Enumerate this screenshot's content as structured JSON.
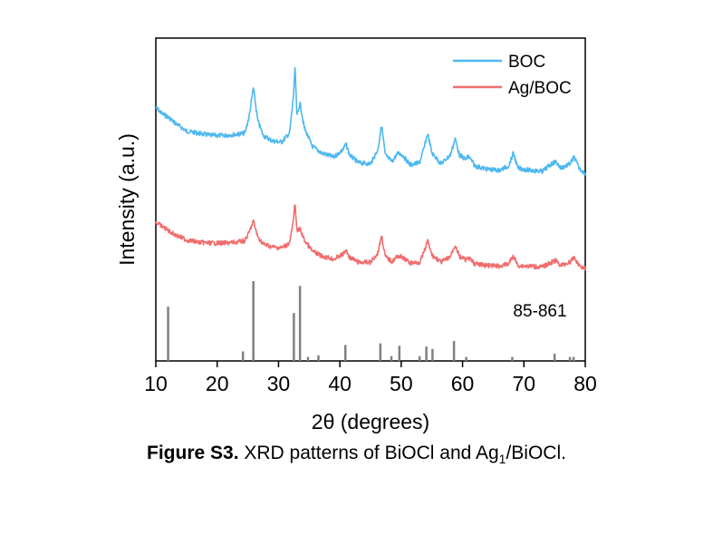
{
  "chart_data": {
    "type": "line",
    "title": "",
    "xlabel": "2θ (degrees)",
    "ylabel": "Intensity (a.u.)",
    "xlim": [
      10,
      80
    ],
    "xticks": [
      10,
      20,
      30,
      40,
      50,
      60,
      70,
      80
    ],
    "yticks_shown": false,
    "legend": {
      "placement": "top-right"
    },
    "series": [
      {
        "name": "BOC",
        "color": "#4db8f0",
        "baseline": "upper",
        "points": [
          [
            10,
            0.64
          ],
          [
            11,
            0.58
          ],
          [
            12,
            0.55
          ],
          [
            13,
            0.5
          ],
          [
            15,
            0.42
          ],
          [
            17,
            0.4
          ],
          [
            19,
            0.38
          ],
          [
            21,
            0.38
          ],
          [
            23,
            0.39
          ],
          [
            24.5,
            0.4
          ],
          [
            25.2,
            0.55
          ],
          [
            25.9,
            0.82
          ],
          [
            26.6,
            0.52
          ],
          [
            27.5,
            0.38
          ],
          [
            29,
            0.33
          ],
          [
            30.5,
            0.32
          ],
          [
            31.8,
            0.4
          ],
          [
            32.4,
            0.72
          ],
          [
            32.7,
            1.0
          ],
          [
            33.0,
            0.55
          ],
          [
            33.5,
            0.68
          ],
          [
            34.2,
            0.45
          ],
          [
            35.5,
            0.28
          ],
          [
            37,
            0.22
          ],
          [
            39,
            0.18
          ],
          [
            40.5,
            0.25
          ],
          [
            41,
            0.3
          ],
          [
            41.6,
            0.2
          ],
          [
            43,
            0.13
          ],
          [
            45,
            0.12
          ],
          [
            46.2,
            0.25
          ],
          [
            46.8,
            0.48
          ],
          [
            47.4,
            0.2
          ],
          [
            48.5,
            0.14
          ],
          [
            49.5,
            0.22
          ],
          [
            50.2,
            0.2
          ],
          [
            51.5,
            0.11
          ],
          [
            53,
            0.13
          ],
          [
            53.8,
            0.28
          ],
          [
            54.3,
            0.4
          ],
          [
            55,
            0.22
          ],
          [
            56.5,
            0.12
          ],
          [
            58,
            0.2
          ],
          [
            58.8,
            0.35
          ],
          [
            59.5,
            0.2
          ],
          [
            60.5,
            0.16
          ],
          [
            61,
            0.19
          ],
          [
            62,
            0.1
          ],
          [
            64,
            0.07
          ],
          [
            66,
            0.06
          ],
          [
            67.5,
            0.1
          ],
          [
            68.3,
            0.22
          ],
          [
            69,
            0.08
          ],
          [
            71,
            0.06
          ],
          [
            73,
            0.05
          ],
          [
            74.5,
            0.12
          ],
          [
            75.2,
            0.14
          ],
          [
            76,
            0.08
          ],
          [
            77.5,
            0.12
          ],
          [
            78.2,
            0.18
          ],
          [
            79,
            0.08
          ],
          [
            80,
            0.03
          ]
        ]
      },
      {
        "name": "Ag/BOC",
        "color": "#f06d6d",
        "baseline": "lower",
        "points": [
          [
            10,
            0.6
          ],
          [
            11,
            0.55
          ],
          [
            12,
            0.5
          ],
          [
            13,
            0.45
          ],
          [
            15,
            0.38
          ],
          [
            17,
            0.35
          ],
          [
            19,
            0.34
          ],
          [
            21,
            0.34
          ],
          [
            23,
            0.35
          ],
          [
            24.5,
            0.37
          ],
          [
            25.2,
            0.47
          ],
          [
            25.9,
            0.62
          ],
          [
            26.6,
            0.42
          ],
          [
            27.5,
            0.33
          ],
          [
            29,
            0.29
          ],
          [
            30.5,
            0.28
          ],
          [
            31.8,
            0.34
          ],
          [
            32.4,
            0.6
          ],
          [
            32.7,
            0.86
          ],
          [
            33.0,
            0.48
          ],
          [
            33.5,
            0.52
          ],
          [
            34.2,
            0.38
          ],
          [
            35.5,
            0.24
          ],
          [
            37,
            0.18
          ],
          [
            39,
            0.14
          ],
          [
            40.5,
            0.2
          ],
          [
            41,
            0.25
          ],
          [
            41.6,
            0.16
          ],
          [
            43,
            0.1
          ],
          [
            45,
            0.1
          ],
          [
            46.2,
            0.22
          ],
          [
            46.8,
            0.44
          ],
          [
            47.4,
            0.17
          ],
          [
            48.5,
            0.11
          ],
          [
            49.5,
            0.18
          ],
          [
            50.2,
            0.16
          ],
          [
            51.5,
            0.09
          ],
          [
            53,
            0.1
          ],
          [
            53.8,
            0.24
          ],
          [
            54.3,
            0.37
          ],
          [
            55,
            0.19
          ],
          [
            56.5,
            0.1
          ],
          [
            58,
            0.17
          ],
          [
            58.8,
            0.32
          ],
          [
            59.5,
            0.17
          ],
          [
            60.5,
            0.13
          ],
          [
            61,
            0.15
          ],
          [
            62,
            0.08
          ],
          [
            64,
            0.06
          ],
          [
            66,
            0.05
          ],
          [
            67.5,
            0.08
          ],
          [
            68.3,
            0.18
          ],
          [
            69,
            0.06
          ],
          [
            71,
            0.05
          ],
          [
            73,
            0.04
          ],
          [
            74.5,
            0.1
          ],
          [
            75.2,
            0.12
          ],
          [
            76,
            0.06
          ],
          [
            77.5,
            0.1
          ],
          [
            78.2,
            0.16
          ],
          [
            79,
            0.06
          ],
          [
            80,
            0.02
          ]
        ]
      }
    ],
    "reference": {
      "label": "85-861",
      "color": "#808080",
      "sticks": [
        [
          12.0,
          0.68
        ],
        [
          24.2,
          0.12
        ],
        [
          25.9,
          1.0
        ],
        [
          32.5,
          0.6
        ],
        [
          33.5,
          0.94
        ],
        [
          34.8,
          0.05
        ],
        [
          36.5,
          0.07
        ],
        [
          40.9,
          0.2
        ],
        [
          46.6,
          0.22
        ],
        [
          48.4,
          0.06
        ],
        [
          49.7,
          0.19
        ],
        [
          53.0,
          0.06
        ],
        [
          54.1,
          0.18
        ],
        [
          55.1,
          0.15
        ],
        [
          58.6,
          0.25
        ],
        [
          60.6,
          0.05
        ],
        [
          68.1,
          0.05
        ],
        [
          75.0,
          0.09
        ],
        [
          77.5,
          0.05
        ],
        [
          78.1,
          0.05
        ]
      ]
    }
  },
  "caption": {
    "bold": "Figure S3.",
    "text_before_sub": " XRD patterns of BiOCl and Ag",
    "sub": "1",
    "text_after_sub": "/BiOCl."
  }
}
